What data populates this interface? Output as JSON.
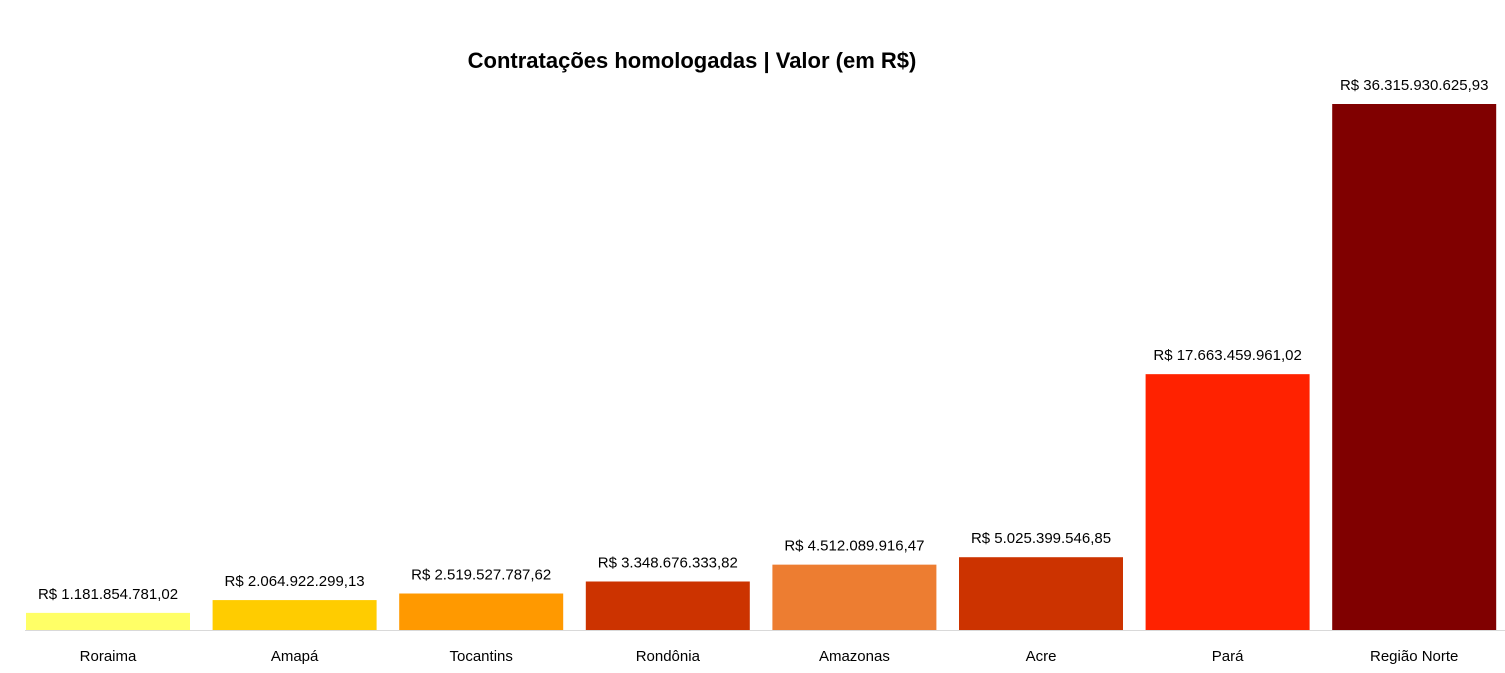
{
  "chart_data": {
    "type": "bar",
    "title": "Contratações homologadas | Valor (em R$)",
    "xlabel": "",
    "ylabel": "",
    "categories": [
      "Roraima",
      "Amapá",
      "Tocantins",
      "Rondônia",
      "Amazonas",
      "Acre",
      "Pará",
      "Região Norte"
    ],
    "values": [
      1181854781.02,
      2064922299.13,
      2519527787.62,
      3348676333.82,
      4512089916.47,
      5025399546.85,
      17663459961.02,
      36315930625.93
    ],
    "data_labels": [
      "R$ 1.181.854.781,02",
      "R$ 2.064.922.299,13",
      "R$ 2.519.527.787,62",
      "R$ 3.348.676.333,82",
      "R$ 4.512.089.916,47",
      "R$ 5.025.399.546,85",
      "R$ 17.663.459.961,02",
      "R$ 36.315.930.625,93"
    ],
    "colors": [
      "#FFFF66",
      "#FFCC00",
      "#FF9900",
      "#CC3300",
      "#ED7D31",
      "#CC3300",
      "#FF2200",
      "#800000"
    ],
    "ylim": [
      0,
      36315930625.93
    ],
    "grid": false,
    "legend": "none",
    "y_axis_visible": false
  }
}
